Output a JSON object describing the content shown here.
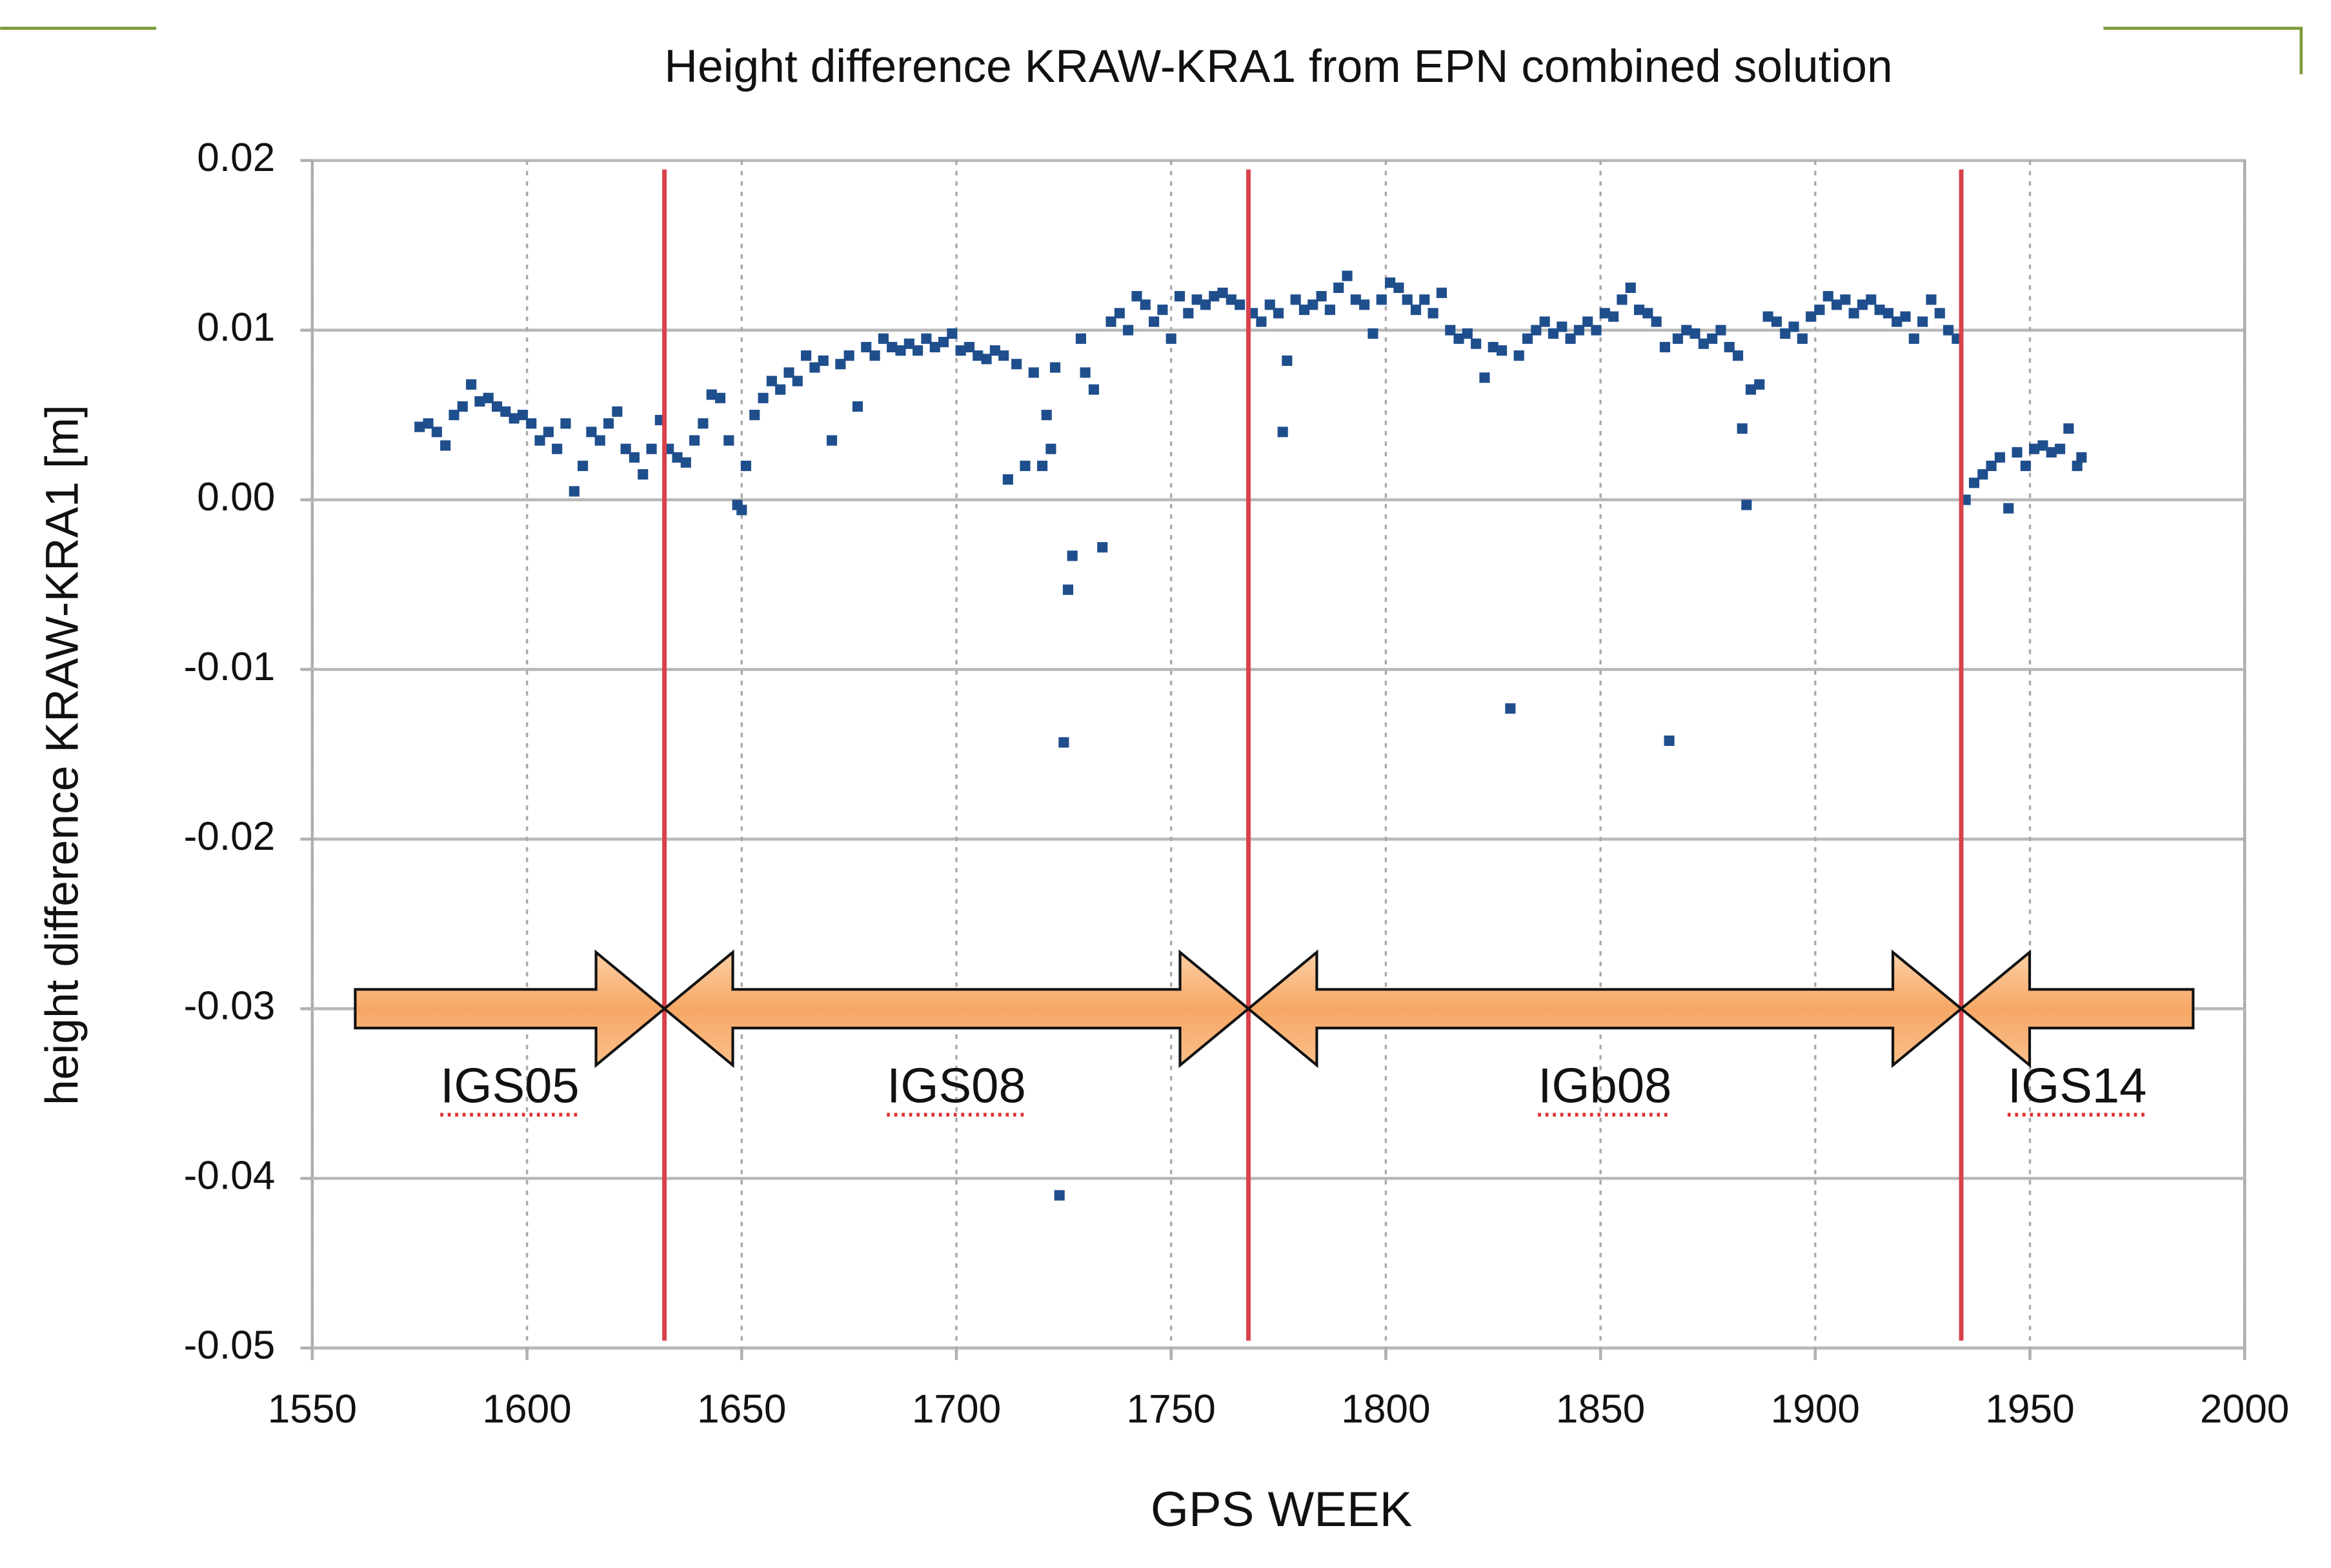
{
  "chart_data": {
    "type": "scatter",
    "title": "Height difference KRAW-KRA1 from EPN combined solution",
    "x_label": "GPS WEEK",
    "y_label": "height difference KRAW-KRA1 [m]",
    "color": "#1f4e8c",
    "xlim": [
      1550,
      2000
    ],
    "xticks": [
      1550,
      1600,
      1650,
      1700,
      1750,
      1800,
      1850,
      1900,
      1950,
      2000
    ],
    "ylim": [
      -0.05,
      0.02
    ],
    "yticks": [
      -0.05,
      -0.04,
      -0.03,
      -0.02,
      -0.01,
      {
        "value": 0,
        "label": "0.00"
      },
      0.01,
      0.02
    ],
    "grid": true,
    "vlines": [
      1632,
      1768,
      1934
    ],
    "vline_color": "#d9414a",
    "periods": [
      {
        "label": "IGS05",
        "start": 1560,
        "end": 1632,
        "y": -0.03
      },
      {
        "label": "IGS08",
        "start": 1632,
        "end": 1768,
        "y": -0.03
      },
      {
        "label": "IGb08",
        "start": 1768,
        "end": 1934,
        "y": -0.03
      },
      {
        "label": "IGS14",
        "start": 1934,
        "end": 1988,
        "y": -0.03
      }
    ],
    "x": [
      1575,
      1577,
      1579,
      1581,
      1583,
      1585,
      1587,
      1589,
      1591,
      1593,
      1595,
      1597,
      1599,
      1601,
      1603,
      1605,
      1607,
      1609,
      1611,
      1613,
      1615,
      1617,
      1619,
      1621,
      1623,
      1625,
      1627,
      1629,
      1631,
      1633,
      1635,
      1637,
      1639,
      1641,
      1643,
      1645,
      1647,
      1649,
      1650,
      1651,
      1653,
      1655,
      1657,
      1659,
      1661,
      1663,
      1665,
      1667,
      1669,
      1671,
      1673,
      1675,
      1677,
      1679,
      1681,
      1683,
      1685,
      1687,
      1689,
      1691,
      1693,
      1695,
      1697,
      1699,
      1701,
      1703,
      1705,
      1707,
      1709,
      1711,
      1712,
      1714,
      1716,
      1718,
      1720,
      1721,
      1722,
      1723,
      1724,
      1725,
      1726,
      1727,
      1729,
      1730,
      1732,
      1734,
      1736,
      1738,
      1740,
      1742,
      1744,
      1746,
      1748,
      1750,
      1752,
      1754,
      1756,
      1758,
      1760,
      1762,
      1764,
      1766,
      1769,
      1771,
      1773,
      1775,
      1776,
      1777,
      1779,
      1781,
      1783,
      1785,
      1787,
      1789,
      1791,
      1793,
      1795,
      1797,
      1799,
      1801,
      1803,
      1805,
      1807,
      1809,
      1811,
      1813,
      1815,
      1817,
      1819,
      1821,
      1823,
      1825,
      1827,
      1829,
      1831,
      1833,
      1835,
      1837,
      1839,
      1841,
      1843,
      1845,
      1847,
      1849,
      1851,
      1853,
      1855,
      1857,
      1859,
      1861,
      1863,
      1865,
      1866,
      1868,
      1870,
      1872,
      1874,
      1876,
      1878,
      1880,
      1882,
      1883,
      1884,
      1885,
      1887,
      1889,
      1891,
      1893,
      1895,
      1897,
      1899,
      1901,
      1903,
      1905,
      1907,
      1909,
      1911,
      1913,
      1915,
      1917,
      1919,
      1921,
      1923,
      1925,
      1927,
      1929,
      1931,
      1933,
      1935,
      1937,
      1939,
      1941,
      1943,
      1945,
      1947,
      1949,
      1951,
      1953,
      1955,
      1957,
      1959,
      1961,
      1962
    ],
    "values": [
      0.0043,
      0.0045,
      0.004,
      0.0032,
      0.005,
      0.0055,
      0.0068,
      0.0058,
      0.006,
      0.0055,
      0.0052,
      0.0048,
      0.005,
      0.0045,
      0.0035,
      0.004,
      0.003,
      0.0045,
      0.0005,
      0.002,
      0.004,
      0.0035,
      0.0045,
      0.0052,
      0.003,
      0.0025,
      0.0015,
      0.003,
      0.0047,
      0.003,
      0.0025,
      0.0022,
      0.0035,
      0.0045,
      0.0062,
      0.006,
      0.0035,
      -0.0003,
      -0.0006,
      0.002,
      0.005,
      0.006,
      0.007,
      0.0065,
      0.0075,
      0.007,
      0.0085,
      0.0078,
      0.0082,
      0.0035,
      0.008,
      0.0085,
      0.0055,
      0.009,
      0.0085,
      0.0095,
      0.009,
      0.0088,
      0.0092,
      0.0088,
      0.0095,
      0.009,
      0.0093,
      0.0098,
      0.0088,
      0.009,
      0.0085,
      0.0083,
      0.0088,
      0.0085,
      0.0012,
      0.008,
      0.002,
      0.0075,
      0.002,
      0.005,
      0.003,
      0.0078,
      -0.041,
      -0.0143,
      -0.0053,
      -0.0033,
      0.0095,
      0.0075,
      0.0065,
      -0.0028,
      0.0105,
      0.011,
      0.01,
      0.012,
      0.0115,
      0.0105,
      0.0112,
      0.0095,
      0.012,
      0.011,
      0.0118,
      0.0115,
      0.012,
      0.0122,
      0.0118,
      0.0115,
      0.011,
      0.0105,
      0.0115,
      0.011,
      0.004,
      0.0082,
      0.0118,
      0.0112,
      0.0115,
      0.012,
      0.0112,
      0.0125,
      0.0132,
      0.0118,
      0.0115,
      0.0098,
      0.0118,
      0.0128,
      0.0125,
      0.0118,
      0.0112,
      0.0118,
      0.011,
      0.0122,
      0.01,
      0.0095,
      0.0098,
      0.0092,
      0.0072,
      0.009,
      0.0088,
      -0.0123,
      0.0085,
      0.0095,
      0.01,
      0.0105,
      0.0098,
      0.0102,
      0.0095,
      0.01,
      0.0105,
      0.01,
      0.011,
      0.0108,
      0.0118,
      0.0125,
      0.0112,
      0.011,
      0.0105,
      0.009,
      -0.0142,
      0.0095,
      0.01,
      0.0098,
      0.0092,
      0.0095,
      0.01,
      0.009,
      0.0085,
      0.0042,
      -0.0003,
      0.0065,
      0.0068,
      0.0108,
      0.0105,
      0.0098,
      0.0102,
      0.0095,
      0.0108,
      0.0112,
      0.012,
      0.0115,
      0.0118,
      0.011,
      0.0115,
      0.0118,
      0.0112,
      0.011,
      0.0105,
      0.0108,
      0.0095,
      0.0105,
      0.0118,
      0.011,
      0.01,
      0.0095,
      0.0,
      0.001,
      0.0015,
      0.002,
      0.0025,
      -0.0005,
      0.0028,
      0.002,
      0.003,
      0.0032,
      0.0028,
      0.003,
      0.0042,
      0.002,
      0.0025
    ]
  }
}
